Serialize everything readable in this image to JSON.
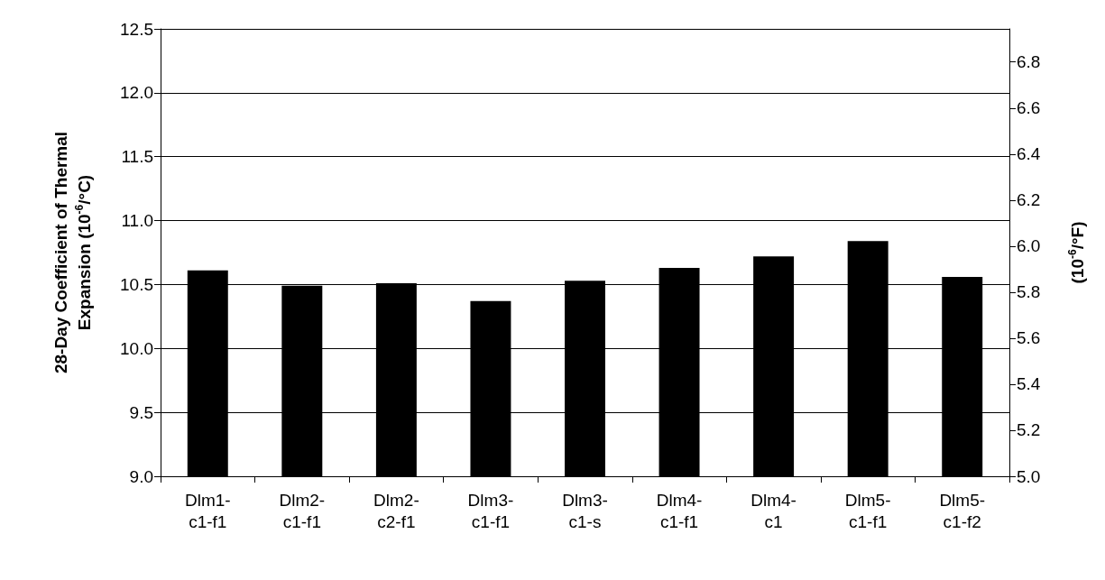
{
  "chart_data": {
    "type": "bar",
    "ylabel": "28-Day Coefficient of Thermal\nExpansion (10$^{-6}$/°C)",
    "y2label": "(10$^{-6}$/°F)",
    "categories": [
      "Dlm1-\nc1-f1",
      "Dlm2-\nc1-f1",
      "Dlm2-\nc2-f1",
      "Dlm3-\nc1-f1",
      "Dlm3-\nc1-s",
      "Dlm4-\nc1-f1",
      "Dlm4-\nc1",
      "Dlm5-\nc1-f1",
      "Dlm5-\nc1-f2"
    ],
    "values": [
      10.61,
      10.49,
      10.51,
      10.37,
      10.53,
      10.63,
      10.72,
      10.84,
      10.56
    ],
    "color": "#000000",
    "ylim": [
      9.0,
      12.5
    ],
    "yticks": [
      {
        "value": 9.0,
        "label": "9.0"
      },
      {
        "value": 9.5,
        "label": "9.5"
      },
      {
        "value": 10.0,
        "label": "10.0"
      },
      {
        "value": 10.5,
        "label": "10.5"
      },
      {
        "value": 11.0,
        "label": "11.0"
      },
      {
        "value": 11.5,
        "label": "11.5"
      },
      {
        "value": 12.0,
        "label": "12.0"
      },
      {
        "value": 12.5,
        "label": "12.5"
      }
    ],
    "y2lim": [
      5.0,
      6.944
    ],
    "y2ticks": [
      {
        "value": 5.0,
        "label": "5.0"
      },
      {
        "value": 5.2,
        "label": "5.2"
      },
      {
        "value": 5.4,
        "label": "5.4"
      },
      {
        "value": 5.6,
        "label": "5.6"
      },
      {
        "value": 5.8,
        "label": "5.8"
      },
      {
        "value": 6.0,
        "label": "6.0"
      },
      {
        "value": 6.2,
        "label": "6.2"
      },
      {
        "value": 6.4,
        "label": "6.4"
      },
      {
        "value": 6.6,
        "label": "6.6"
      },
      {
        "value": 6.8,
        "label": "6.8"
      }
    ],
    "grid": "y"
  }
}
